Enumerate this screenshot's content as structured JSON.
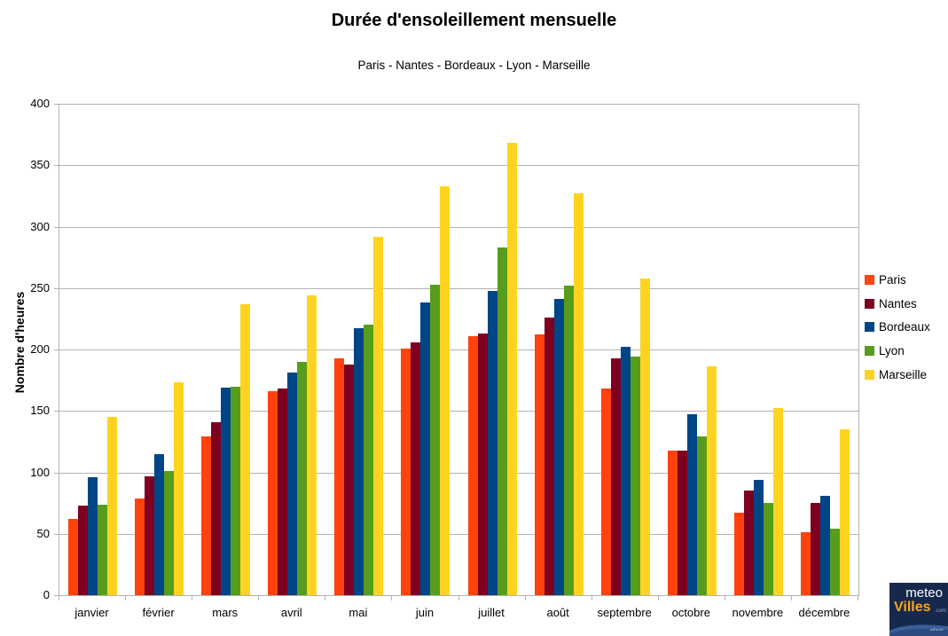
{
  "header": {
    "title": "Durée d'ensoleillement mensuelle",
    "subtitle": "Paris - Nantes - Bordeaux - Lyon - Marseille"
  },
  "chart_data": {
    "type": "bar",
    "title": "Durée d'ensoleillement mensuelle",
    "subtitle": "Paris - Nantes - Bordeaux - Lyon - Marseille",
    "ylabel": "Nombre d'heures",
    "xlabel": "",
    "ylim": [
      0,
      400
    ],
    "ytick_step": 50,
    "yticks": [
      0,
      50,
      100,
      150,
      200,
      250,
      300,
      350,
      400
    ],
    "grid": true,
    "legend_position": "right",
    "categories": [
      "janvier",
      "février",
      "mars",
      "avril",
      "mai",
      "juin",
      "juillet",
      "août",
      "septembre",
      "octobre",
      "novembre",
      "décembre"
    ],
    "series": [
      {
        "name": "Paris",
        "color": "#FF420E",
        "values": [
          62,
          79,
          129,
          166,
          193,
          201,
          211,
          212,
          168,
          118,
          67,
          51
        ]
      },
      {
        "name": "Nantes",
        "color": "#7E0021",
        "values": [
          73,
          97,
          141,
          168,
          188,
          206,
          213,
          226,
          193,
          118,
          85,
          75
        ]
      },
      {
        "name": "Bordeaux",
        "color": "#004586",
        "values": [
          96,
          115,
          169,
          181,
          217,
          238,
          248,
          241,
          202,
          147,
          94,
          81
        ]
      },
      {
        "name": "Lyon",
        "color": "#579D1C",
        "values": [
          74,
          101,
          170,
          190,
          220,
          253,
          283,
          252,
          194,
          129,
          75,
          54
        ]
      },
      {
        "name": "Marseille",
        "color": "#FFD320",
        "values": [
          145,
          173,
          237,
          244,
          292,
          333,
          368,
          327,
          258,
          186,
          152,
          135
        ]
      }
    ]
  },
  "colors": {
    "gridline": "#b3b3b3",
    "axis": "#b3b3b3",
    "text": "#000000",
    "logo_background": "#16294d",
    "logo_swoosh": "#3a5f99",
    "logo_accent": "#ffa515"
  },
  "logo": {
    "line1": "meteo",
    "line2": "Villes",
    "domain": ".com",
    "banner": "officiel"
  }
}
